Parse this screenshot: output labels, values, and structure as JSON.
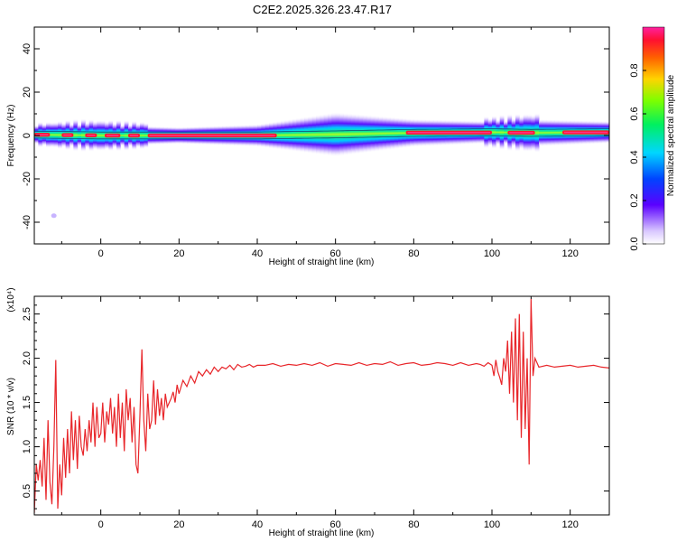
{
  "title": "C2E2.2025.326.23.47.R17",
  "chart_data": [
    {
      "type": "heatmap",
      "xlabel": "Height of straight line (km)",
      "ylabel": "Frequency (Hz)",
      "xlim": [
        -17,
        130
      ],
      "ylim": [
        -50,
        50
      ],
      "xticks": [
        0,
        20,
        40,
        60,
        80,
        100,
        120
      ],
      "yticks": [
        -40,
        -20,
        0,
        20,
        40
      ],
      "colorbar": {
        "label": "Normalized spectral amplitude",
        "range": [
          0,
          1
        ],
        "ticks": [
          "0.0",
          "0.2",
          "0.4",
          "0.6",
          "0.8"
        ]
      },
      "band_center_hz": [
        [
          -17,
          0.4
        ],
        [
          0,
          0
        ],
        [
          20,
          0
        ],
        [
          40,
          0
        ],
        [
          60,
          0.5
        ],
        [
          80,
          1.2
        ],
        [
          100,
          1.5
        ],
        [
          110,
          1.2
        ],
        [
          130,
          1.5
        ]
      ],
      "band_halfwidth_hz": [
        [
          -17,
          1.5
        ],
        [
          -5,
          2
        ],
        [
          0,
          2
        ],
        [
          20,
          1.5
        ],
        [
          40,
          2
        ],
        [
          60,
          4
        ],
        [
          80,
          2.5
        ],
        [
          100,
          2
        ],
        [
          110,
          2.5
        ],
        [
          130,
          2
        ]
      ],
      "peak_segments_km": [
        [
          -17,
          -13
        ],
        [
          -10,
          -7
        ],
        [
          -4,
          -1
        ],
        [
          1,
          5
        ],
        [
          7,
          10
        ],
        [
          12,
          45
        ],
        [
          78,
          100
        ],
        [
          104,
          111
        ],
        [
          118,
          130
        ]
      ],
      "outlier_point": {
        "x": -12,
        "y": -37
      }
    },
    {
      "type": "line",
      "xlabel": "Height of straight line (km)",
      "ylabel": "SNR (10 * v/v)",
      "y_multiplier": "(x10⁴)",
      "xlim": [
        -17,
        130
      ],
      "ylim": [
        0.23,
        2.7
      ],
      "xticks": [
        0,
        20,
        40,
        60,
        80,
        100,
        120
      ],
      "yticks": [
        0.5,
        1.0,
        1.5,
        2.0,
        2.5
      ],
      "color": "#e8262a",
      "series": [
        {
          "x": [
            -17,
            -16.5,
            -16,
            -15.5,
            -15,
            -14.5,
            -14,
            -13.5,
            -13,
            -12.5,
            -12,
            -11.5,
            -11,
            -10.5,
            -10,
            -9.5,
            -9,
            -8.5,
            -8,
            -7.5,
            -7,
            -6.5,
            -6,
            -5.5,
            -5,
            -4.5,
            -4,
            -3.5,
            -3,
            -2.5,
            -2,
            -1.5,
            -1,
            -0.5,
            0,
            0.5,
            1,
            1.5,
            2,
            2.5,
            3,
            3.5,
            4,
            4.5,
            5,
            5.5,
            6,
            6.5,
            7,
            7.5,
            8,
            8.5,
            9,
            9.5,
            10,
            10.5,
            11,
            11.5,
            12,
            12.5,
            13,
            13.5,
            14,
            14.5,
            15,
            15.5,
            16,
            16.5,
            17,
            17.5,
            18,
            18.5,
            19,
            19.5,
            20,
            21,
            22,
            23,
            24,
            25,
            26,
            27,
            28,
            29,
            30,
            31,
            32,
            33,
            34,
            35,
            36,
            37,
            38,
            39,
            40,
            42,
            44,
            46,
            48,
            50,
            52,
            54,
            56,
            58,
            60,
            62,
            64,
            66,
            68,
            70,
            72,
            74,
            76,
            78,
            80,
            82,
            84,
            86,
            88,
            90,
            92,
            94,
            96,
            97,
            98,
            99,
            100,
            100.5,
            101,
            101.5,
            102,
            102.5,
            103,
            103.5,
            104,
            104.5,
            105,
            105.5,
            106,
            106.5,
            107,
            107.5,
            108,
            108.5,
            109,
            109.5,
            110,
            110.5,
            111,
            112,
            114,
            116,
            118,
            120,
            122,
            124,
            126,
            128,
            130
          ],
          "values": [
            0.25,
            0.8,
            0.62,
            0.85,
            0.55,
            1.1,
            0.4,
            1.3,
            0.6,
            0.35,
            1.0,
            1.98,
            0.3,
            0.8,
            0.45,
            1.1,
            0.65,
            1.2,
            0.7,
            1.4,
            0.85,
            1.3,
            0.75,
            1.35,
            1.0,
            0.9,
            1.2,
            0.95,
            1.3,
            1.05,
            1.5,
            1.0,
            1.45,
            1.1,
            1.15,
            1.5,
            1.05,
            1.4,
            1.25,
            1.55,
            1.15,
            1.45,
            1.0,
            1.6,
            1.1,
            1.5,
            0.95,
            1.65,
            1.3,
            1.55,
            1.05,
            1.45,
            0.8,
            0.7,
            1.35,
            2.1,
            1.3,
            0.95,
            1.6,
            1.2,
            1.3,
            1.75,
            1.25,
            1.65,
            1.35,
            1.55,
            1.3,
            1.6,
            1.45,
            1.5,
            1.55,
            1.62,
            1.5,
            1.7,
            1.6,
            1.75,
            1.68,
            1.8,
            1.72,
            1.85,
            1.8,
            1.87,
            1.82,
            1.9,
            1.85,
            1.9,
            1.88,
            1.92,
            1.87,
            1.93,
            1.9,
            1.91,
            1.93,
            1.9,
            1.92,
            1.92,
            1.94,
            1.91,
            1.93,
            1.92,
            1.94,
            1.92,
            1.95,
            1.91,
            1.94,
            1.93,
            1.92,
            1.95,
            1.92,
            1.94,
            1.93,
            1.96,
            1.92,
            1.94,
            1.95,
            1.92,
            1.93,
            1.95,
            1.94,
            1.92,
            1.95,
            1.92,
            1.94,
            1.93,
            1.91,
            1.95,
            1.92,
            1.8,
            1.98,
            1.85,
            1.78,
            1.7,
            2.0,
            1.85,
            2.2,
            1.6,
            2.3,
            1.5,
            2.45,
            1.3,
            2.5,
            1.1,
            2.3,
            1.2,
            2.0,
            0.8,
            2.67,
            1.8,
            2.0,
            1.9,
            1.92,
            1.9,
            1.91,
            1.92,
            1.9,
            1.91,
            1.92,
            1.9,
            1.89
          ]
        }
      ]
    }
  ]
}
